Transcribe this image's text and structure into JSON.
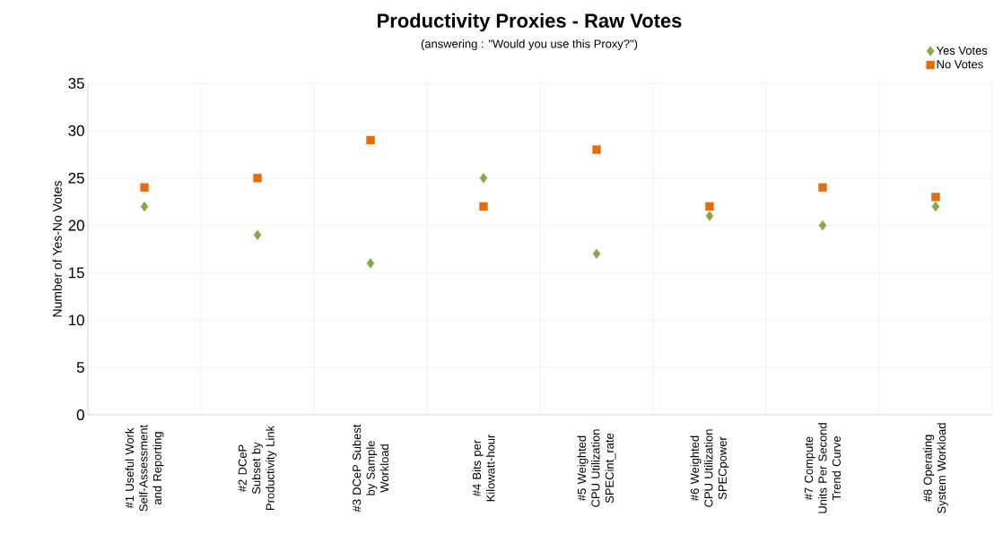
{
  "chart_data": {
    "type": "scatter",
    "title": "Productivity Proxies - Raw Votes",
    "subtitle": "(answering : \"Would you use this Proxy?\")",
    "ylabel": "Number of Yes-No Votes",
    "categories": [
      "#1 Useful Work Self-Assessment and Reporting",
      "#2 DCeP Subset by Productivity Link",
      "#3 DCeP Subest by Sample Workload",
      "#4 Bits per Kilowatt-hour",
      "#5 Weighted CPU Utilization SPECint_rate",
      "#6 Weighted CPU Utilization SPECpower",
      "#7 Compute Units Per Second Trend Curve",
      "#8 Operating System Workload"
    ],
    "series": [
      {
        "name": "Yes Votes",
        "color": "#86a846",
        "marker": "diamond",
        "values": [
          22,
          19,
          16,
          25,
          17,
          21,
          20,
          22
        ]
      },
      {
        "name": "No Votes",
        "color": "#e46c0a",
        "marker": "square",
        "values": [
          24,
          25,
          29,
          22,
          28,
          22,
          24,
          23
        ]
      }
    ],
    "ylim": [
      0,
      35
    ],
    "yticks": [
      0,
      5,
      10,
      15,
      20,
      25,
      30,
      35
    ],
    "grid": true,
    "legend": "top right"
  }
}
